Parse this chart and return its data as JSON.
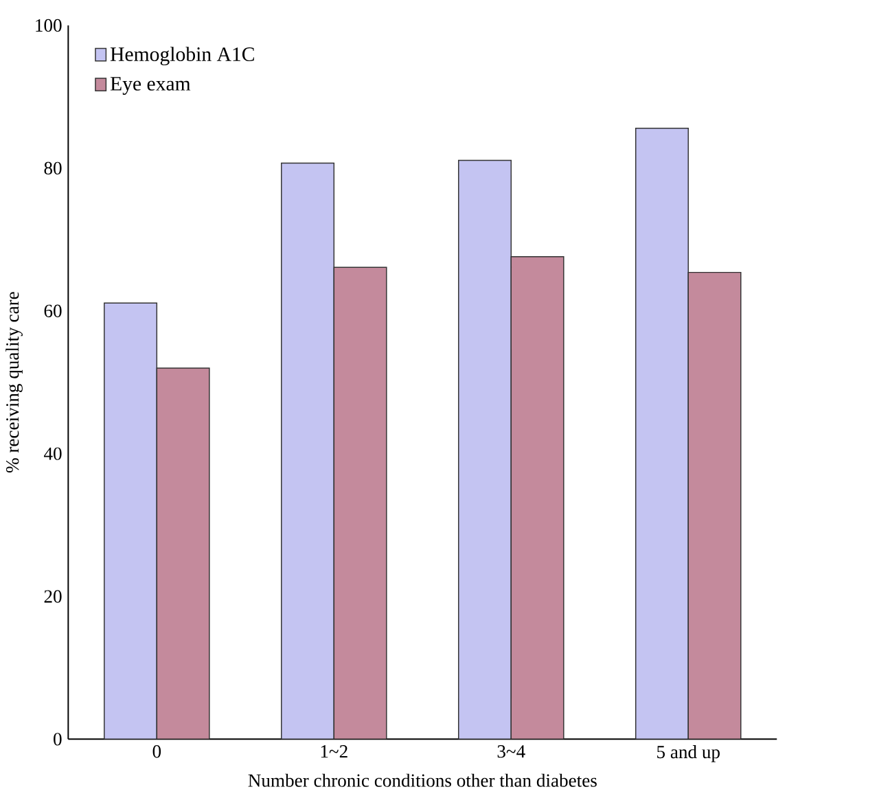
{
  "chart_data": {
    "type": "bar",
    "xlabel": "Number chronic conditions other than diabetes",
    "ylabel": "% receiving quality care",
    "categories": [
      "0",
      "1~2",
      "3~4",
      "5 and up"
    ],
    "series": [
      {
        "name": "Hemoglobin A1C",
        "color": "#c4c4f2",
        "values": [
          61.1,
          80.7,
          81.1,
          85.6
        ]
      },
      {
        "name": "Eye exam",
        "color": "#c48a9c",
        "values": [
          52.0,
          66.1,
          67.6,
          65.4
        ]
      }
    ],
    "ylim": [
      0,
      100
    ],
    "yticks": [
      0,
      20,
      40,
      60,
      80,
      100
    ],
    "legend": "top left",
    "grid": false
  }
}
